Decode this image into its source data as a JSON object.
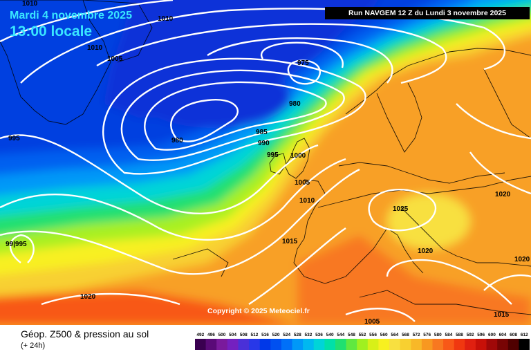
{
  "header": {
    "date": "Mardi 4 novembre 2025",
    "time": "13:00 locale",
    "run": "Run NAVGEM 12 Z du Lundi 3 novembre 2025"
  },
  "copyright": "Copyright © 2025 Meteociel.fr",
  "footer": {
    "title": "Géop. Z500 & pression au sol",
    "subtitle": "(+ 24h)"
  },
  "legend": {
    "values": [
      "492",
      "496",
      "500",
      "504",
      "508",
      "512",
      "516",
      "520",
      "524",
      "528",
      "532",
      "536",
      "540",
      "544",
      "548",
      "552",
      "556",
      "560",
      "564",
      "568",
      "572",
      "576",
      "580",
      "584",
      "588",
      "592",
      "596",
      "600",
      "604",
      "608",
      "612"
    ],
    "colors": [
      "#3a0050",
      "#5a0a78",
      "#7a1a9c",
      "#7420c0",
      "#4a30d8",
      "#2838e8",
      "#0038e8",
      "#0050f0",
      "#0070f8",
      "#0098f8",
      "#00b8f0",
      "#00d4d8",
      "#00e0a8",
      "#20e070",
      "#60e840",
      "#a0f020",
      "#d8f018",
      "#f8f020",
      "#f8e040",
      "#f8d030",
      "#f8b828",
      "#f89820",
      "#f87820",
      "#f85818",
      "#f03810",
      "#e02010",
      "#c81008",
      "#a00808",
      "#780404",
      "#500000",
      "#000000"
    ]
  },
  "pressure_labels": [
    "1010",
    "1010",
    "1005",
    "1010",
    "975",
    "980",
    "980",
    "985",
    "990",
    "995",
    "1000",
    "1005",
    "1010",
    "1015",
    "995",
    "99|995",
    "1020",
    "1025",
    "1020",
    "1020",
    "1015",
    "1020",
    "1005"
  ],
  "colors": {
    "contour": "#ffffff",
    "title": "#39e6ff",
    "banner": "#000000"
  }
}
